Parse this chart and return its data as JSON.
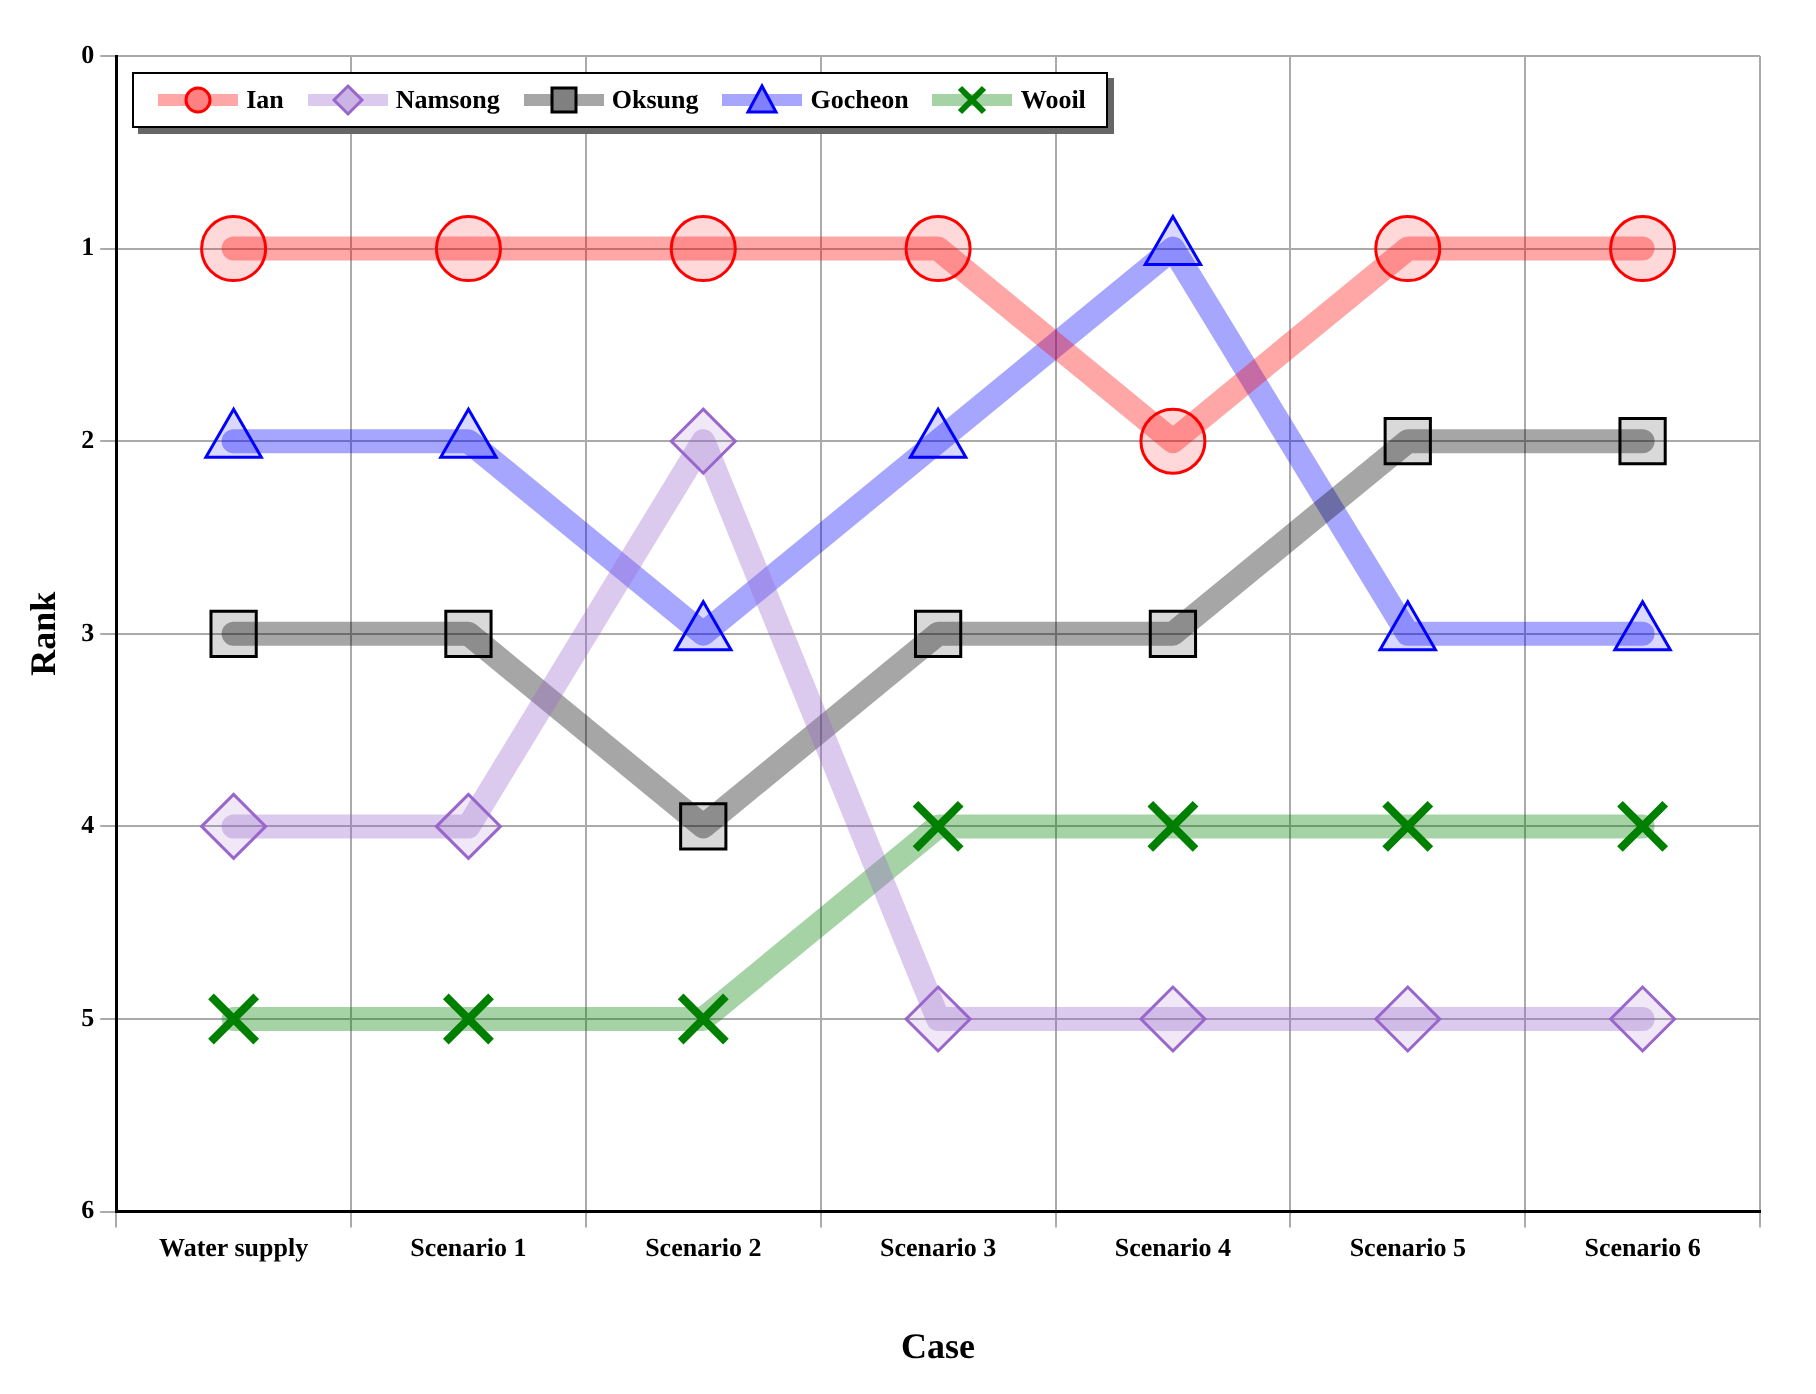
{
  "chart_data": {
    "type": "line",
    "xlabel": "Case",
    "ylabel": "Rank",
    "categories": [
      "Water supply",
      "Scenario 1",
      "Scenario 2",
      "Scenario 3",
      "Scenario 4",
      "Scenario 5",
      "Scenario 6"
    ],
    "ylim": [
      6,
      0
    ],
    "yticks": [
      0,
      1,
      2,
      3,
      4,
      5,
      6
    ],
    "grid": true,
    "legend": "top left",
    "line_style": "solid",
    "series": [
      {
        "name": "Ian",
        "color": "#ff0000",
        "marker": "circle",
        "values": [
          1,
          1,
          1,
          1,
          2,
          1,
          1
        ]
      },
      {
        "name": "Namsong",
        "color": "#9966cc",
        "marker": "diamond",
        "values": [
          4,
          4,
          2,
          5,
          5,
          5,
          5
        ]
      },
      {
        "name": "Oksung",
        "color": "#000000",
        "marker": "square",
        "values": [
          3,
          3,
          4,
          3,
          3,
          2,
          2
        ]
      },
      {
        "name": "Gocheon",
        "color": "#0000ff",
        "marker": "triangle",
        "values": [
          2,
          2,
          3,
          2,
          1,
          3,
          3
        ]
      },
      {
        "name": "Wooil",
        "color": "#008000",
        "marker": "cross",
        "values": [
          5,
          5,
          5,
          4,
          4,
          4,
          4
        ]
      }
    ]
  }
}
